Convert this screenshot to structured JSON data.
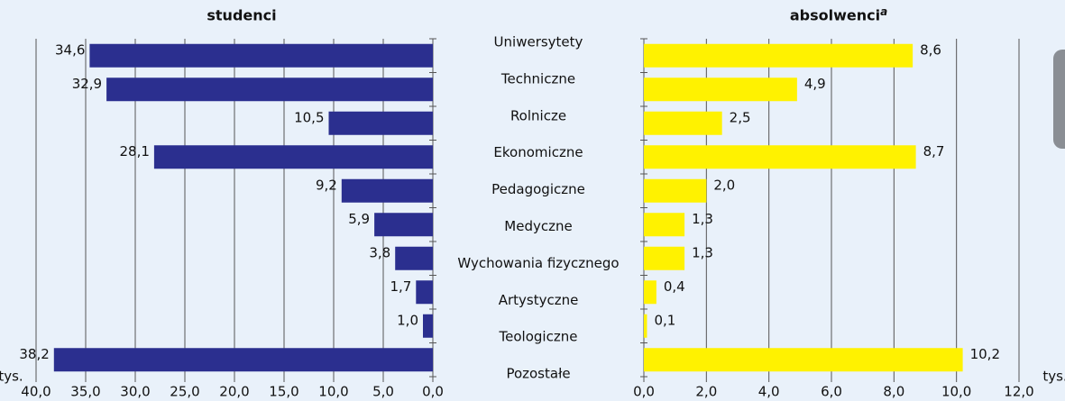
{
  "chart_data": [
    {
      "type": "barh",
      "title": "studenci",
      "unit": "tys.",
      "x_reversed": true,
      "color": "#2b2f8f",
      "grid": true,
      "categories": [
        "Uniwersytety",
        "Techniczne",
        "Rolnicze",
        "Ekonomiczne",
        "Pedagogiczne",
        "Medyczne",
        "Wychowania fizycznego",
        "Artystyczne",
        "Teologiczne",
        "Pozostałe"
      ],
      "values": [
        34.6,
        32.9,
        10.5,
        28.1,
        9.2,
        5.9,
        3.8,
        1.7,
        1.0,
        38.2
      ],
      "value_labels": [
        "34,6",
        "32,9",
        "10,5",
        "28,1",
        "9,2",
        "5,9",
        "3,8",
        "1,7",
        "1,0",
        "38,2"
      ],
      "xlim": [
        0,
        40
      ],
      "xticks": [
        {
          "value": 40,
          "label": "40,0"
        },
        {
          "value": 35,
          "label": "35,0"
        },
        {
          "value": 30,
          "label": "30,0"
        },
        {
          "value": 25,
          "label": "25,0"
        },
        {
          "value": 20,
          "label": "20,0"
        },
        {
          "value": 15,
          "label": "15,0"
        },
        {
          "value": 10,
          "label": "10,0"
        },
        {
          "value": 5,
          "label": "5,0"
        },
        {
          "value": 0,
          "label": "0,0"
        }
      ]
    },
    {
      "type": "barh",
      "title": "absolwenci",
      "title_note": "a",
      "unit": "tys.",
      "x_reversed": false,
      "color": "#fff200",
      "grid": true,
      "values": [
        8.6,
        4.9,
        2.5,
        8.7,
        2.0,
        1.3,
        1.3,
        0.4,
        0.1,
        10.2
      ],
      "value_labels": [
        "8,6",
        "4,9",
        "2,5",
        "8,7",
        "2,0",
        "1,3",
        "1,3",
        "0,4",
        "0,1",
        "10,2"
      ],
      "xlim": [
        0,
        12
      ],
      "xticks": [
        {
          "value": 0,
          "label": "0,0"
        },
        {
          "value": 2,
          "label": "2,0"
        },
        {
          "value": 4,
          "label": "4,0"
        },
        {
          "value": 6,
          "label": "6,0"
        },
        {
          "value": 8,
          "label": "8,0"
        },
        {
          "value": 10,
          "label": "10,0"
        },
        {
          "value": 12,
          "label": "12,0"
        }
      ]
    }
  ]
}
